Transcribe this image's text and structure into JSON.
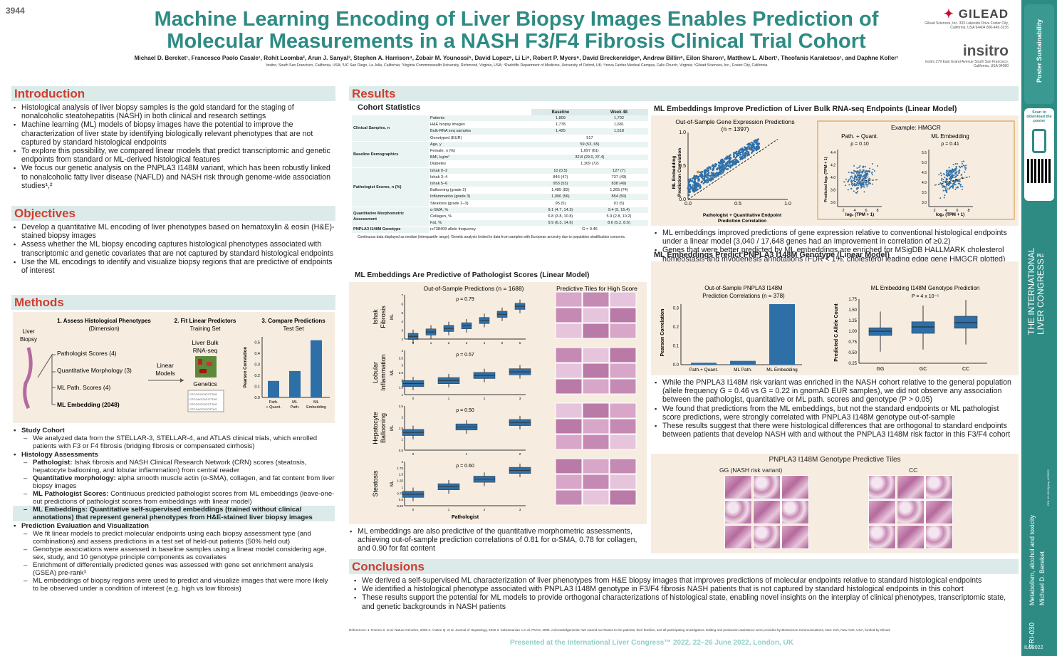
{
  "poster_number": "3944",
  "title": "Machine Learning Encoding of Liver Biopsy Images Enables Prediction of Molecular Measurements in a NASH F3/F4 Fibrosis Clinical Trial Cohort",
  "authors": "Michael D. Bereket¹, Francesco Paolo Casale¹, Rohit Loomba², Arun J. Sanyal³, Stephen A. Harrison⁴, Zobair M. Younossi⁵, David Lopez⁶, Li Li⁶, Robert P. Myers⁶, David Breckenridge⁶, Andrew Billin⁶, Eilon Sharon¹, Matthew L. Albert¹, Theofanis Karaletsos¹, and Daphne Koller¹",
  "affiliations": "¹insitro, South San Francisco, California, USA; ²UC San Diego, La Jolla, California; ³Virginia Commonwealth University, Richmond, Virginia, USA; ⁴Radcliffe Department of Medicine, University of Oxford, UK; ⁵Inova Fairfax Medical Campus, Falls Church, Virginia; ⁶Gilead Sciences, Inc., Foster City, California",
  "gilead": {
    "name": "GILEAD",
    "addr": "Gilead Sciences, Inc. 333 Lakeside Drive Foster City, California, USA 94404 800-445-3235"
  },
  "insitro": {
    "name": "insitro",
    "addr": "insitro 279 East Grand Avenue South San Francisco, California, USA 94080"
  },
  "intro": {
    "heading": "Introduction",
    "bullets": [
      "Histological analysis of liver biopsy samples is the gold standard for the staging of nonalcoholic steatohepatitis (NASH) in both clinical and research settings",
      "Machine learning (ML) models of biopsy images have the potential to improve the characterization of liver state by identifying biologically relevant phenotypes that are not captured by standard histological endpoints",
      "To explore this possibility, we compared linear models that predict transcriptomic and genetic endpoints from standard or ML-derived histological features",
      "We focus our genetic analysis on the PNPLA3 I148M variant, which has been robustly linked to nonalcoholic fatty liver disease (NAFLD) and NASH risk through genome-wide association studies¹,²"
    ]
  },
  "objectives": {
    "heading": "Objectives",
    "bullets": [
      "Develop a quantitative ML encoding of liver phenotypes based on hematoxylin & eosin (H&E)-stained biopsy images",
      "Assess whether the ML biopsy encoding captures histological phenotypes associated with transcriptomic and genetic covariates that are not captured by standard histological endpoints",
      "Use the ML encodings to identify and visualize biopsy regions that are predictive of endpoints of interest"
    ]
  },
  "methods": {
    "heading": "Methods",
    "step1": "1. Assess Histological Phenotypes",
    "step1sub": "(Dimension)",
    "step2": "2. Fit Linear Predictors",
    "step2sub": "Training Set",
    "step3": "3. Compare Predictions",
    "step3sub": "Test Set",
    "liver": "Liver Biopsy",
    "f1": "Pathologist Scores (4)",
    "f2": "Quantitative Morphology (3)",
    "f3": "ML Path. Scores (4)",
    "f4": "ML Embedding (2048)",
    "linear": "Linear Models",
    "rna": "Liver Bulk RNA-seq",
    "genetics": "Genetics",
    "ylab": "Pearson Correlation",
    "bars": [
      "Path. + Quant.",
      "ML Path.",
      "ML Embedding"
    ],
    "vals": [
      0.15,
      0.24,
      0.52
    ],
    "ticks": [
      "0.0",
      "0.1",
      "0.2",
      "0.3",
      "0.4",
      "0.5"
    ],
    "items": [
      {
        "t": "h",
        "x": "Study Cohort"
      },
      {
        "t": "d",
        "x": "We analyzed data from the STELLAR-3, STELLAR-4, and ATLAS clinical trials, which enrolled patients with F3 or F4 fibrosis (bridging fibrosis or compensated cirrhosis)"
      },
      {
        "t": "h",
        "x": "Histology Assessments"
      },
      {
        "t": "d",
        "b": "Pathologist:",
        "x": " Ishak fibrosis and NASH Clinical Research Network (CRN) scores (steatosis, hepatocyte ballooning, and lobular inflammation) from central reader"
      },
      {
        "t": "d",
        "b": "Quantitative morphology:",
        "x": " alpha smooth muscle actin (α-SMA), collagen, and fat content from liver biopsy images"
      },
      {
        "t": "d",
        "b": "ML Pathologist Scores:",
        "x": " Continuous predicted pathologist scores from ML embeddings (leave-one-out predictions of pathologist scores from embeddings with linear model)"
      },
      {
        "t": "dh",
        "x": "ML Embeddings: Quantitative self-supervised embeddings (trained without clinical annotations) that represent general phenotypes from H&E-stained liver biopsy images"
      },
      {
        "t": "h",
        "x": "Prediction Evaluation and Visualization"
      },
      {
        "t": "d",
        "x": "We fit linear models to predict molecular endpoints using each biopsy assessment type (and combinations) and assess predictions in a test set of held-out patients (50% held out)"
      },
      {
        "t": "d",
        "x": "Genotype associations were assessed in baseline samples using a linear model considering age, sex, study, and 10 genotype principle components as covariates"
      },
      {
        "t": "d",
        "x": "Enrichment of differentially predicted genes was assessed with gene set enrichment analysis (GSEA) pre-rank³"
      },
      {
        "t": "d",
        "x": "ML embeddings of biopsy regions were used to predict and visualize images that were more likely to be observed under a condition of interest (e.g. high vs low fibrosis)"
      }
    ]
  },
  "results": {
    "heading": "Results"
  },
  "cohort": {
    "title": "Cohort Statistics",
    "cols": [
      "Baseline",
      "Week 48"
    ],
    "groups": [
      {
        "g": "Clinical Samples, n",
        "rows": [
          [
            "Patients",
            "1,809",
            "1,702"
          ],
          [
            "H&E biopsy images",
            "1,778",
            "1,681"
          ],
          [
            "Bulk-RNA seq samples",
            "1,425",
            "1,518"
          ],
          [
            "Genotyped (EUR)",
            "917",
            ""
          ]
        ]
      },
      {
        "g": "Baseline Demographics",
        "rows": [
          [
            "Age, y",
            "59 (53, 65)",
            ""
          ],
          [
            "Female, n (%)",
            "1,097 (61)",
            ""
          ],
          [
            "BMI, kg/m²",
            "32.8 (29.0, 37.4)",
            ""
          ],
          [
            "Diabetes",
            "1,309 (72)",
            ""
          ]
        ]
      },
      {
        "g": "Pathologist Scores, n (%)",
        "rows": [
          [
            "Ishak 0–2",
            "10 (0.5)",
            "127 (7)"
          ],
          [
            "Ishak 3–4",
            "846 (47)",
            "737 (43)"
          ],
          [
            "Ishak 5–6",
            "953 (53)",
            "838 (49)"
          ],
          [
            "Ballooning (grade 2)",
            "1,485 (82)",
            "1,265 (74)"
          ],
          [
            "Inflammation (grade 3)",
            "1,006 (56)",
            "854 (50)"
          ],
          [
            "Steatosis (grade 2–3)",
            "95 (5)",
            "91 (5)"
          ]
        ]
      },
      {
        "g": "Quantitative Morphometric Assessment",
        "rows": [
          [
            "α-SMA, %",
            "9.1 (4.7, 14.3)",
            "9.4 (5, 15.4)"
          ],
          [
            "Collagen, %",
            "6.8 (3.8, 10.8)",
            "5.9 (2.8, 10.2)"
          ],
          [
            "Fat, %",
            "9.9 (6.3, 14.6)",
            "8.6 (5.2, 8.6)"
          ]
        ]
      },
      {
        "g": "PNPLA3 I148M Genotype",
        "rows": [
          [
            "rs738409 allele frequency",
            "G = 0.46",
            ""
          ]
        ]
      }
    ],
    "note": "Continuous data displayed as median (interquartile range). Genetic analysis limited to data from samples with European ancestry due to population stratification concerns."
  },
  "pathpred": {
    "title": "ML Embeddings Are Predictive of Pathologist Scores (Linear Model)",
    "sub": "Out-of-Sample Predictions (n = 1688)",
    "tiles": "Predictive Tiles for High Score",
    "xlab": "Pathologist",
    "ml": "ML",
    "panels": [
      {
        "name": "Ishak Fibrosis",
        "rho": "ρ = 0.79"
      },
      {
        "name": "Lobular Inflammation",
        "rho": "ρ = 0.57"
      },
      {
        "name": "Hepatocyte Ballooning",
        "rho": "ρ = 0.50"
      },
      {
        "name": "Steatosis",
        "rho": "ρ = 0.60"
      }
    ],
    "bullet": "ML embeddings are also predictive of the quantitative morphometric assessments, achieving out-of-sample prediction correlations of 0.81 for α-SMA, 0.78 for collagen, and 0.90 for fat content"
  },
  "rna": {
    "title": "ML Embeddings Improve Prediction of Liver Bulk RNA-seq Endpoints (Linear Model)",
    "sub": "Out-of-Sample Gene Expression Predictions",
    "n": "(n = 1397)",
    "ylab": "ML Embedding Prediction Correlation",
    "xlab": "Pathologist + Quantitative Endpoint Prediction Correlation",
    "example": "Example: HMGCR",
    "p1": "Path. + Quant.",
    "r1": "ρ = 0.10",
    "p2": "ML Embedding",
    "r2": "ρ = 0.41",
    "xl2": "log₂ (TPM + 1)",
    "yl2": "Predicted log₂ (TPM + 1)",
    "bullets": [
      "ML embeddings improved predictions of gene expression relative to conventional histological endpoints under a linear model (3,040 / 17,648 genes had an improvement in correlation of ≥0.2)",
      "Genes that were better predicted by ML embeddings are enriched for MSigDB HALLMARK cholesterol homeostasis and myogenesis annotations (FDR < 1%; cholesterol leading edge gene HMGCR plotted)"
    ]
  },
  "geno": {
    "title": "ML Embeddings Predict PNPLA3 I148M Genotype (Linear Model)",
    "sub1": "Out-of-Sample PNPLA3 I148M Prediction Correlations (n = 378)",
    "ylab1": "Pearson Correlation",
    "sub2": "ML Embedding I148M Genotype Prediction",
    "p": "P = 4 x 10⁻⁵",
    "ylab2": "Predicted C Allele Count",
    "cats": [
      "GG",
      "GC",
      "CC"
    ],
    "bullets": [
      "While the PNPLA3 I148M risk variant was enriched in the NASH cohort relative to the general population (allele frequency G = 0.46 vs G = 0.22 in gnomAD EUR samples), we did not observe any association between the pathologist, quantitative or ML path. scores and genotype (P > 0.05)",
      "We found that predictions from the ML embeddings, but not the standard endpoints or ML pathologist score predictions, were strongly correlated with PNPLA3 I148M genotype out-of-sample",
      "These results suggest that there were histological differences that are orthogonal to standard endpoints between patients that develop NASH with and without the PNPLA3 I148M risk factor in this F3/F4 cohort"
    ],
    "tiles": "PNPLA3 I148M Genotype Predictive Tiles",
    "gg": "GG (NASH risk variant)",
    "cc": "CC"
  },
  "chart_data": [
    {
      "type": "bar",
      "ylabel": "Pearson Correlation",
      "categories": [
        "Path. + Quant.",
        "ML Path.",
        "ML Embedding"
      ],
      "values": [
        0.15,
        0.24,
        0.52
      ],
      "ylim": [
        0,
        0.55
      ]
    },
    {
      "type": "bar",
      "title": "Out-of-Sample PNPLA3 I148M Prediction Correlations (n = 378)",
      "ylabel": "Pearson Correlation",
      "categories": [
        "Path.+ Quant.",
        "ML Path.",
        "ML Embedding"
      ],
      "values": [
        0.01,
        0.02,
        0.32
      ],
      "ylim": [
        0,
        0.32
      ]
    },
    {
      "type": "box",
      "title": "ML Embedding I148M Genotype Prediction",
      "ylabel": "Predicted C Allele Count",
      "categories": [
        "GG",
        "GC",
        "CC"
      ],
      "median": [
        1.0,
        1.1,
        1.2
      ],
      "q1": [
        0.9,
        0.95,
        1.07
      ],
      "q3": [
        1.08,
        1.22,
        1.35
      ],
      "ylim": [
        0.25,
        1.75
      ]
    }
  ],
  "conclusions": {
    "heading": "Conclusions",
    "bullets": [
      "We derived a self-supervised ML characterization of liver phenotypes from H&E biopsy images that improves predictions of molecular endpoints relative to standard histological endpoints",
      "We identified a histological phenotype associated with PNPLA3 I148M genotype in F3/F4 fibrosis NASH patients that is not captured by standard histological endpoints in this cohort",
      "These results support the potential for ML models to provide orthogonal characterizations of histological state, enabling novel insights on the interplay of clinical phenotypes, transcriptomic state, and genetic backgrounds in NASH patients"
    ]
  },
  "refs": "References: 1. Romeo S. et al. Nature Genetics, 2008 2. Anstee Q. et al. Journal of Hepatology, 2020 3. Subramanian A et al. PNAS, 2005. Acknowledgements: We extend our thanks to the patients, their families, and all participating investigators. Editing and production assistance were provided by BioScience Communications, New York, New York, USA, funded by Gilead.",
  "presented": "Presented at the International Liver Congress™ 2022, 22–26 June 2022, London, UK",
  "sidebar": {
    "scan": "Scan to download the poster",
    "congress": "THE INTERNATIONAL LIVER CONGRESS™",
    "topic": "Metabolism, alcohol and toxicity",
    "author": "Michael D. Bereket",
    "code": "FRI-030",
    "ilc": "ILC2022",
    "doi": "DOI: 10.1016/j.jhep.ILC2022"
  }
}
